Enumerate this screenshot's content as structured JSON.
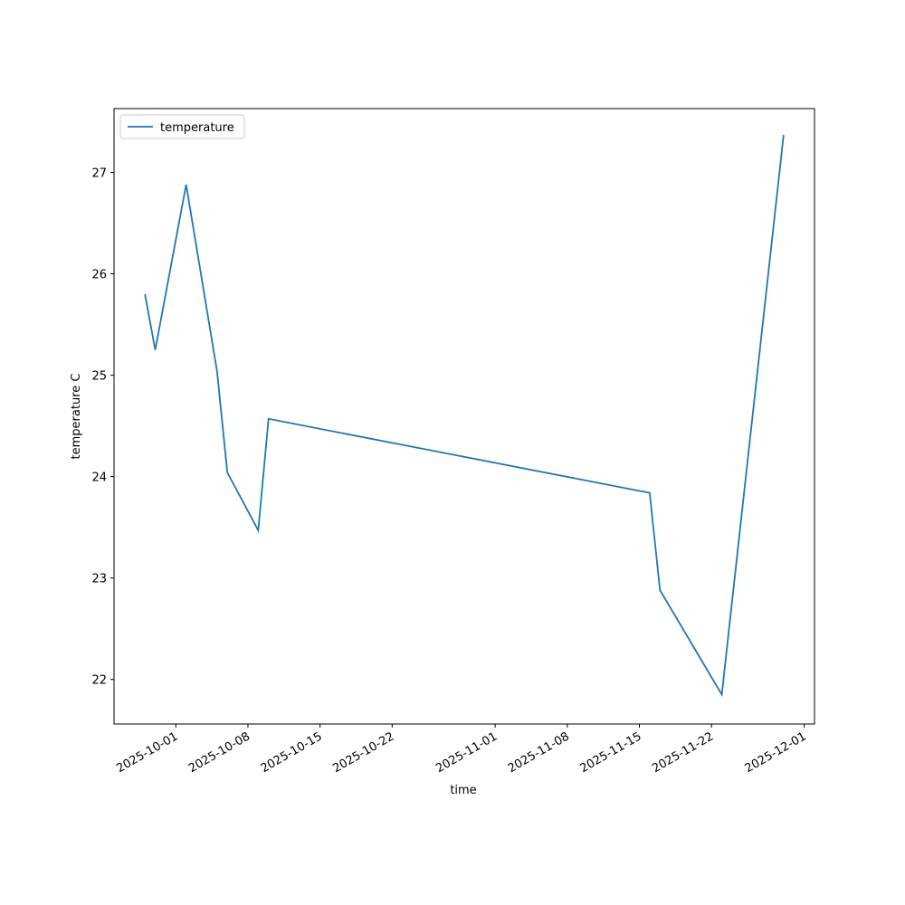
{
  "chart_data": {
    "type": "line",
    "x_label": "time",
    "y_label": "temperature C",
    "x": [
      "2025-09-28",
      "2025-09-29",
      "2025-10-02",
      "2025-10-05",
      "2025-10-06",
      "2025-10-09",
      "2025-10-10",
      "2025-11-16",
      "2025-11-17",
      "2025-11-23",
      "2025-11-29"
    ],
    "series": [
      {
        "name": "temperature",
        "color": "#1f77b4",
        "values": [
          25.8,
          25.25,
          26.88,
          25.04,
          24.04,
          23.47,
          24.57,
          23.84,
          22.88,
          21.85,
          27.37
        ]
      }
    ],
    "xlim": [
      "2025-09-25",
      "2025-12-02"
    ],
    "xticks": [
      "2025-10-01",
      "2025-10-08",
      "2025-10-15",
      "2025-10-22",
      "2025-11-01",
      "2025-11-08",
      "2025-11-15",
      "2025-11-22",
      "2025-12-01"
    ],
    "ylim": [
      21.56,
      27.63
    ],
    "yticks": [
      22,
      23,
      24,
      25,
      26,
      27
    ],
    "grid": false,
    "legend": "upper left"
  }
}
